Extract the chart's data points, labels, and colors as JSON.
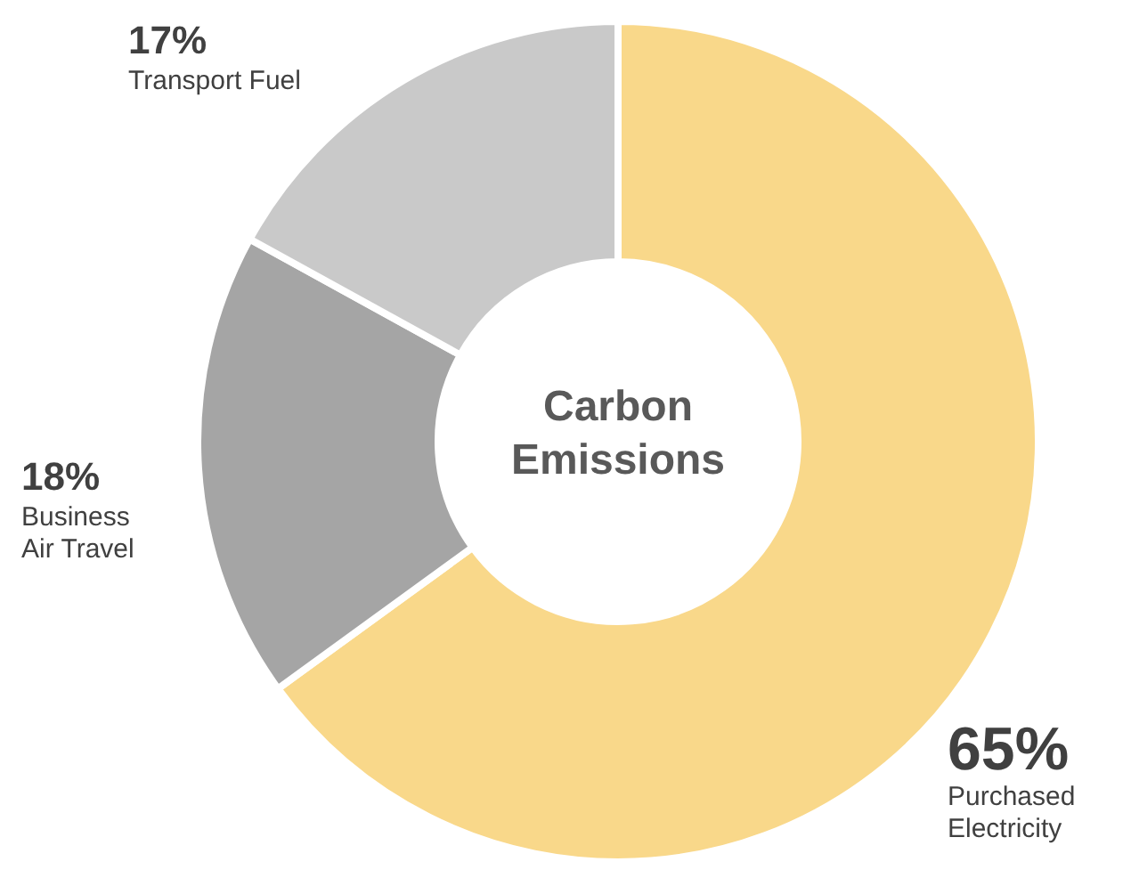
{
  "chart_data": {
    "type": "donut",
    "title": "Carbon Emissions",
    "categories": [
      "Purchased\nElectricity",
      "Business\nAir Travel",
      "Transport Fuel"
    ],
    "values": [
      65,
      18,
      17
    ],
    "colors": [
      "#f9d88a",
      "#a5a5a5",
      "#c9c9c9"
    ],
    "value_labels": [
      "65%",
      "18%",
      "17%"
    ],
    "legend": false
  }
}
